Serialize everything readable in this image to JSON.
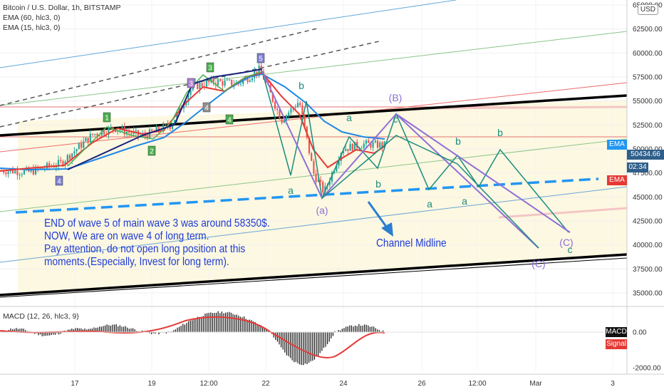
{
  "header": {
    "symbol_line": "Bitcoin / U.S. Dollar, 1h, BITSTAMP",
    "ema1": "EMA (60, hlc3, 0)",
    "ema2": "EMA (15, hlc3, 0)",
    "currency_button": "USD"
  },
  "price_tags": {
    "ema_blue_label": "EMA",
    "last_price": "50434.66",
    "countdown": "02:34",
    "ema_red_label": "EMA",
    "macd_label": "MACD",
    "signal_label": "Signal"
  },
  "annotations": {
    "note_line1": "END of wave 5 of main wave 3 was around 58350$.",
    "note_line2": "NOW, We are on wave 4 of long term.",
    "note_line3": "Pay attention, do not open long position at this",
    "note_line4": "moments.(Especially, Invest for long term).",
    "midline": "Channel Midline"
  },
  "macd": {
    "legend": "MACD (12, 26, hlc3, 9)"
  },
  "colors": {
    "accent_blue": "#2196f3",
    "ema_red": "#e53935",
    "wave_green": "#1a8c7e",
    "wave_purple": "#8e6fd8",
    "note_blue": "#1e3bd6"
  },
  "chart_data": {
    "type": "candlestick",
    "y_axis": {
      "ticks": [
        "65000.00",
        "62500.00",
        "60000.00",
        "57500.00",
        "55000.00",
        "52500.00",
        "50000.00",
        "47500.00",
        "45000.00",
        "42500.00",
        "40000.00",
        "37500.00",
        "35000.00"
      ],
      "range": [
        33000,
        66000
      ]
    },
    "x_axis": {
      "ticks": [
        "17",
        "19",
        "12:00",
        "22",
        "24",
        "26",
        "12:00",
        "Mar",
        "3"
      ]
    },
    "macd_axis": {
      "ticks": [
        "0.00",
        "-2000.00"
      ]
    },
    "wave_labels": [
      {
        "text": "4"
      },
      {
        "text": "1"
      },
      {
        "text": "2"
      },
      {
        "text": "3"
      },
      {
        "text": "4"
      },
      {
        "text": "3"
      },
      {
        "text": "4"
      },
      {
        "text": "5"
      },
      {
        "text": "b"
      },
      {
        "text": "a"
      },
      {
        "text": "(a)"
      },
      {
        "text": "a"
      },
      {
        "text": "b"
      },
      {
        "text": "(B)"
      },
      {
        "text": "c"
      },
      {
        "text": "b"
      },
      {
        "text": "b"
      },
      {
        "text": "a"
      },
      {
        "text": "a"
      },
      {
        "text": "(C)"
      },
      {
        "text": "c"
      },
      {
        "text": "(C)"
      }
    ]
  }
}
